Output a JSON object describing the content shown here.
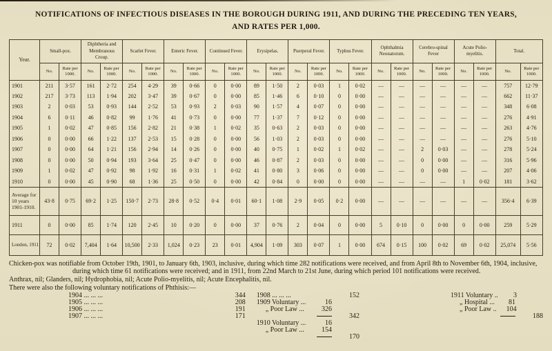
{
  "title": {
    "line1": "NOTIFICATIONS OF INFECTIOUS DISEASES IN THE BOROUGH DURING 1911, AND DURING THE PRECEDING TEN YEARS,",
    "line2": "AND RATES PER 1,000."
  },
  "table": {
    "year_header": "Year.",
    "sub_headers": [
      "No.",
      "Rate per 1000."
    ],
    "groups": [
      "Small-pox.",
      "Diphtheria and Membranous Croup.",
      "Scarlet Fever.",
      "Enteric Fever.",
      "Continued Fever.",
      "Erysipelas.",
      "Puerperal Fever.",
      "Typhus Fever.",
      "Ophthalmia Neonatorum.",
      "Cerebro-spinal Fever",
      "Acute Polio-myelitis.",
      "Total."
    ],
    "rows": [
      {
        "year": "1901",
        "type": "year",
        "values": [
          "211",
          "3·57",
          "161",
          "2·72",
          "254",
          "4·29",
          "39",
          "0·66",
          "0",
          "0·00",
          "89",
          "1·50",
          "2",
          "0·03",
          "1",
          "0·02",
          "—",
          "—",
          "—",
          "—",
          "—",
          "—",
          "757",
          "12·79"
        ]
      },
      {
        "year": "1902",
        "type": "year",
        "values": [
          "217",
          "3·73",
          "113",
          "1·94",
          "202",
          "3·47",
          "39",
          "0·67",
          "0",
          "0·00",
          "85",
          "1·46",
          "6",
          "0·10",
          "0",
          "0·00",
          "—",
          "—",
          "—",
          "—",
          "—",
          "—",
          "662",
          "11·37"
        ]
      },
      {
        "year": "1903",
        "type": "year",
        "values": [
          "2",
          "0·03",
          "53",
          "0·93",
          "144",
          "2·52",
          "53",
          "0·93",
          "2",
          "0·03",
          "90",
          "1·57",
          "4",
          "0·07",
          "0",
          "0·00",
          "—",
          "—",
          "—",
          "—",
          "—",
          "—",
          "348",
          "6·08"
        ]
      },
      {
        "year": "1904",
        "type": "year",
        "values": [
          "6",
          "0·11",
          "46",
          "0·82",
          "99",
          "1·76",
          "41",
          "0·73",
          "0",
          "0·00",
          "77",
          "1·37",
          "7",
          "0·12",
          "0",
          "0·00",
          "—",
          "—",
          "—",
          "—",
          "—",
          "—",
          "276",
          "4·91"
        ]
      },
      {
        "year": "1905",
        "type": "year",
        "values": [
          "1",
          "0·02",
          "47",
          "0·85",
          "156",
          "2·82",
          "21",
          "0·38",
          "1",
          "0·02",
          "35",
          "0·63",
          "2",
          "0·03",
          "0",
          "0·00",
          "—",
          "—",
          "—",
          "—",
          "—",
          "—",
          "263",
          "4·76"
        ]
      },
      {
        "year": "1906",
        "type": "year",
        "values": [
          "0",
          "0·00",
          "66",
          "1·22",
          "137",
          "2·53",
          "15",
          "0·28",
          "0",
          "0·00",
          "56",
          "1·03",
          "2",
          "0·03",
          "0",
          "0·00",
          "—",
          "—",
          "—",
          "—",
          "—",
          "—",
          "276",
          "5·10"
        ]
      },
      {
        "year": "1907",
        "type": "year",
        "values": [
          "0",
          "0·00",
          "64",
          "1·21",
          "156",
          "2·94",
          "14",
          "0·26",
          "0",
          "0·00",
          "40",
          "0·75",
          "1",
          "0·02",
          "1",
          "0·02",
          "—",
          "—",
          "2",
          "0·03",
          "—",
          "—",
          "278",
          "5·24"
        ]
      },
      {
        "year": "1908",
        "type": "year",
        "values": [
          "0",
          "0·00",
          "50",
          "0·94",
          "193",
          "3·64",
          "25",
          "0·47",
          "0",
          "0·00",
          "46",
          "0·87",
          "2",
          "0·03",
          "0",
          "0·00",
          "—",
          "—",
          "0",
          "0·00",
          "—",
          "—",
          "316",
          "5·96"
        ]
      },
      {
        "year": "1909",
        "type": "year",
        "values": [
          "1",
          "0·02",
          "47",
          "0·92",
          "98",
          "1·92",
          "16",
          "0·31",
          "1",
          "0·02",
          "41",
          "0·80",
          "3",
          "0·06",
          "0",
          "0·00",
          "—",
          "—",
          "0",
          "0·00",
          "—",
          "—",
          "207",
          "4·06"
        ]
      },
      {
        "year": "1910",
        "type": "year",
        "values": [
          "0",
          "0·00",
          "45",
          "0·90",
          "68",
          "1·36",
          "25",
          "0·50",
          "0",
          "0·00",
          "42",
          "0·84",
          "0",
          "0·00",
          "0",
          "0·00",
          "—",
          "—",
          "—",
          "—",
          "1",
          "0·02",
          "181",
          "3·62"
        ]
      },
      {
        "year": "Average for 10 years 1901-1910.",
        "type": "average",
        "values": [
          "43·8",
          "0·75",
          "69·2",
          "1·25",
          "150·7",
          "2·73",
          "28·8",
          "0·52",
          "0·4",
          "0·01",
          "60·1",
          "1·08",
          "2·9",
          "0·05",
          "0·2",
          "0·00",
          "—",
          "—",
          "—",
          "—",
          "—",
          "—",
          "356·4",
          "6·39"
        ]
      },
      {
        "year": "1911",
        "type": "y1911",
        "values": [
          "0",
          "0·00",
          "85",
          "1·74",
          "120",
          "2·45",
          "10",
          "0·20",
          "0",
          "0·00",
          "37",
          "0·76",
          "2",
          "0·04",
          "0",
          "0·00",
          "5",
          "0·10",
          "0",
          "0·00",
          "0",
          "0·00",
          "259",
          "5·29"
        ]
      },
      {
        "year": "London, 1911",
        "type": "london",
        "values": [
          "72",
          "0·02",
          "7,404",
          "1·64",
          "10,500",
          "2·33",
          "1,024",
          "0·23",
          "23",
          "0·01",
          "4,904",
          "1·09",
          "303",
          "0·07",
          "1",
          "0·00",
          "674",
          "0·15",
          "100",
          "0·02",
          "69",
          "0·02",
          "25,074",
          "5·56"
        ]
      }
    ]
  },
  "notes": {
    "chickenpox": "Chicken-pox was notifiable from October 19th, 1901, to January 6th, 1903, inclusive, during which time 282 notifications were received, and from April 8th to November 6th, 1904, inclusive, during which time 61 notifications were received; and in 1911, from 22nd March to 21st June, during which period 101 notifications were received.",
    "nil_diseases": "Anthrax, nil; Glanders, nil; Hydrophobia, nil; Acute Polio-myelitis, nil; Acute Encephalitis, nil.",
    "phthisis_intro": "There were also the following voluntary notifications of Phthisis:—"
  },
  "phthisis": {
    "columns": [
      {
        "rows": [
          {
            "label": "1904",
            "dots": "... ... ...",
            "value": "344"
          },
          {
            "label": "1905",
            "dots": "... ... ...",
            "value": "208"
          },
          {
            "label": "1906",
            "dots": "... ... ...",
            "value": "191"
          },
          {
            "label": "1907",
            "dots": "... ... ...",
            "value": "171"
          }
        ]
      },
      {
        "rows": [
          {
            "label": "1908",
            "dots": "... ... ...",
            "sum": "152"
          },
          {
            "label": "1909 Voluntary",
            "dots": "...",
            "value": "16"
          },
          {
            "label": "„ Poor Law",
            "dots": "...",
            "value": "326",
            "indent": true
          },
          {
            "rule": true,
            "sum": "342"
          },
          {
            "label": "1910 Voluntary",
            "dots": "...",
            "value": "16"
          },
          {
            "label": "„ Poor Law",
            "dots": "...",
            "value": "154",
            "indent": true
          },
          {
            "rule": true,
            "sum": "170"
          }
        ]
      },
      {
        "rows": [
          {
            "label": "1911 Voluntary",
            "dots": "...",
            "value": "3"
          },
          {
            "label": "„ Hospital",
            "dots": "...",
            "value": "81",
            "indent": true
          },
          {
            "label": "„ Poor Law",
            "dots": "...",
            "value": "104",
            "indent": true
          },
          {
            "rule": true,
            "sum": "188"
          }
        ]
      }
    ]
  }
}
